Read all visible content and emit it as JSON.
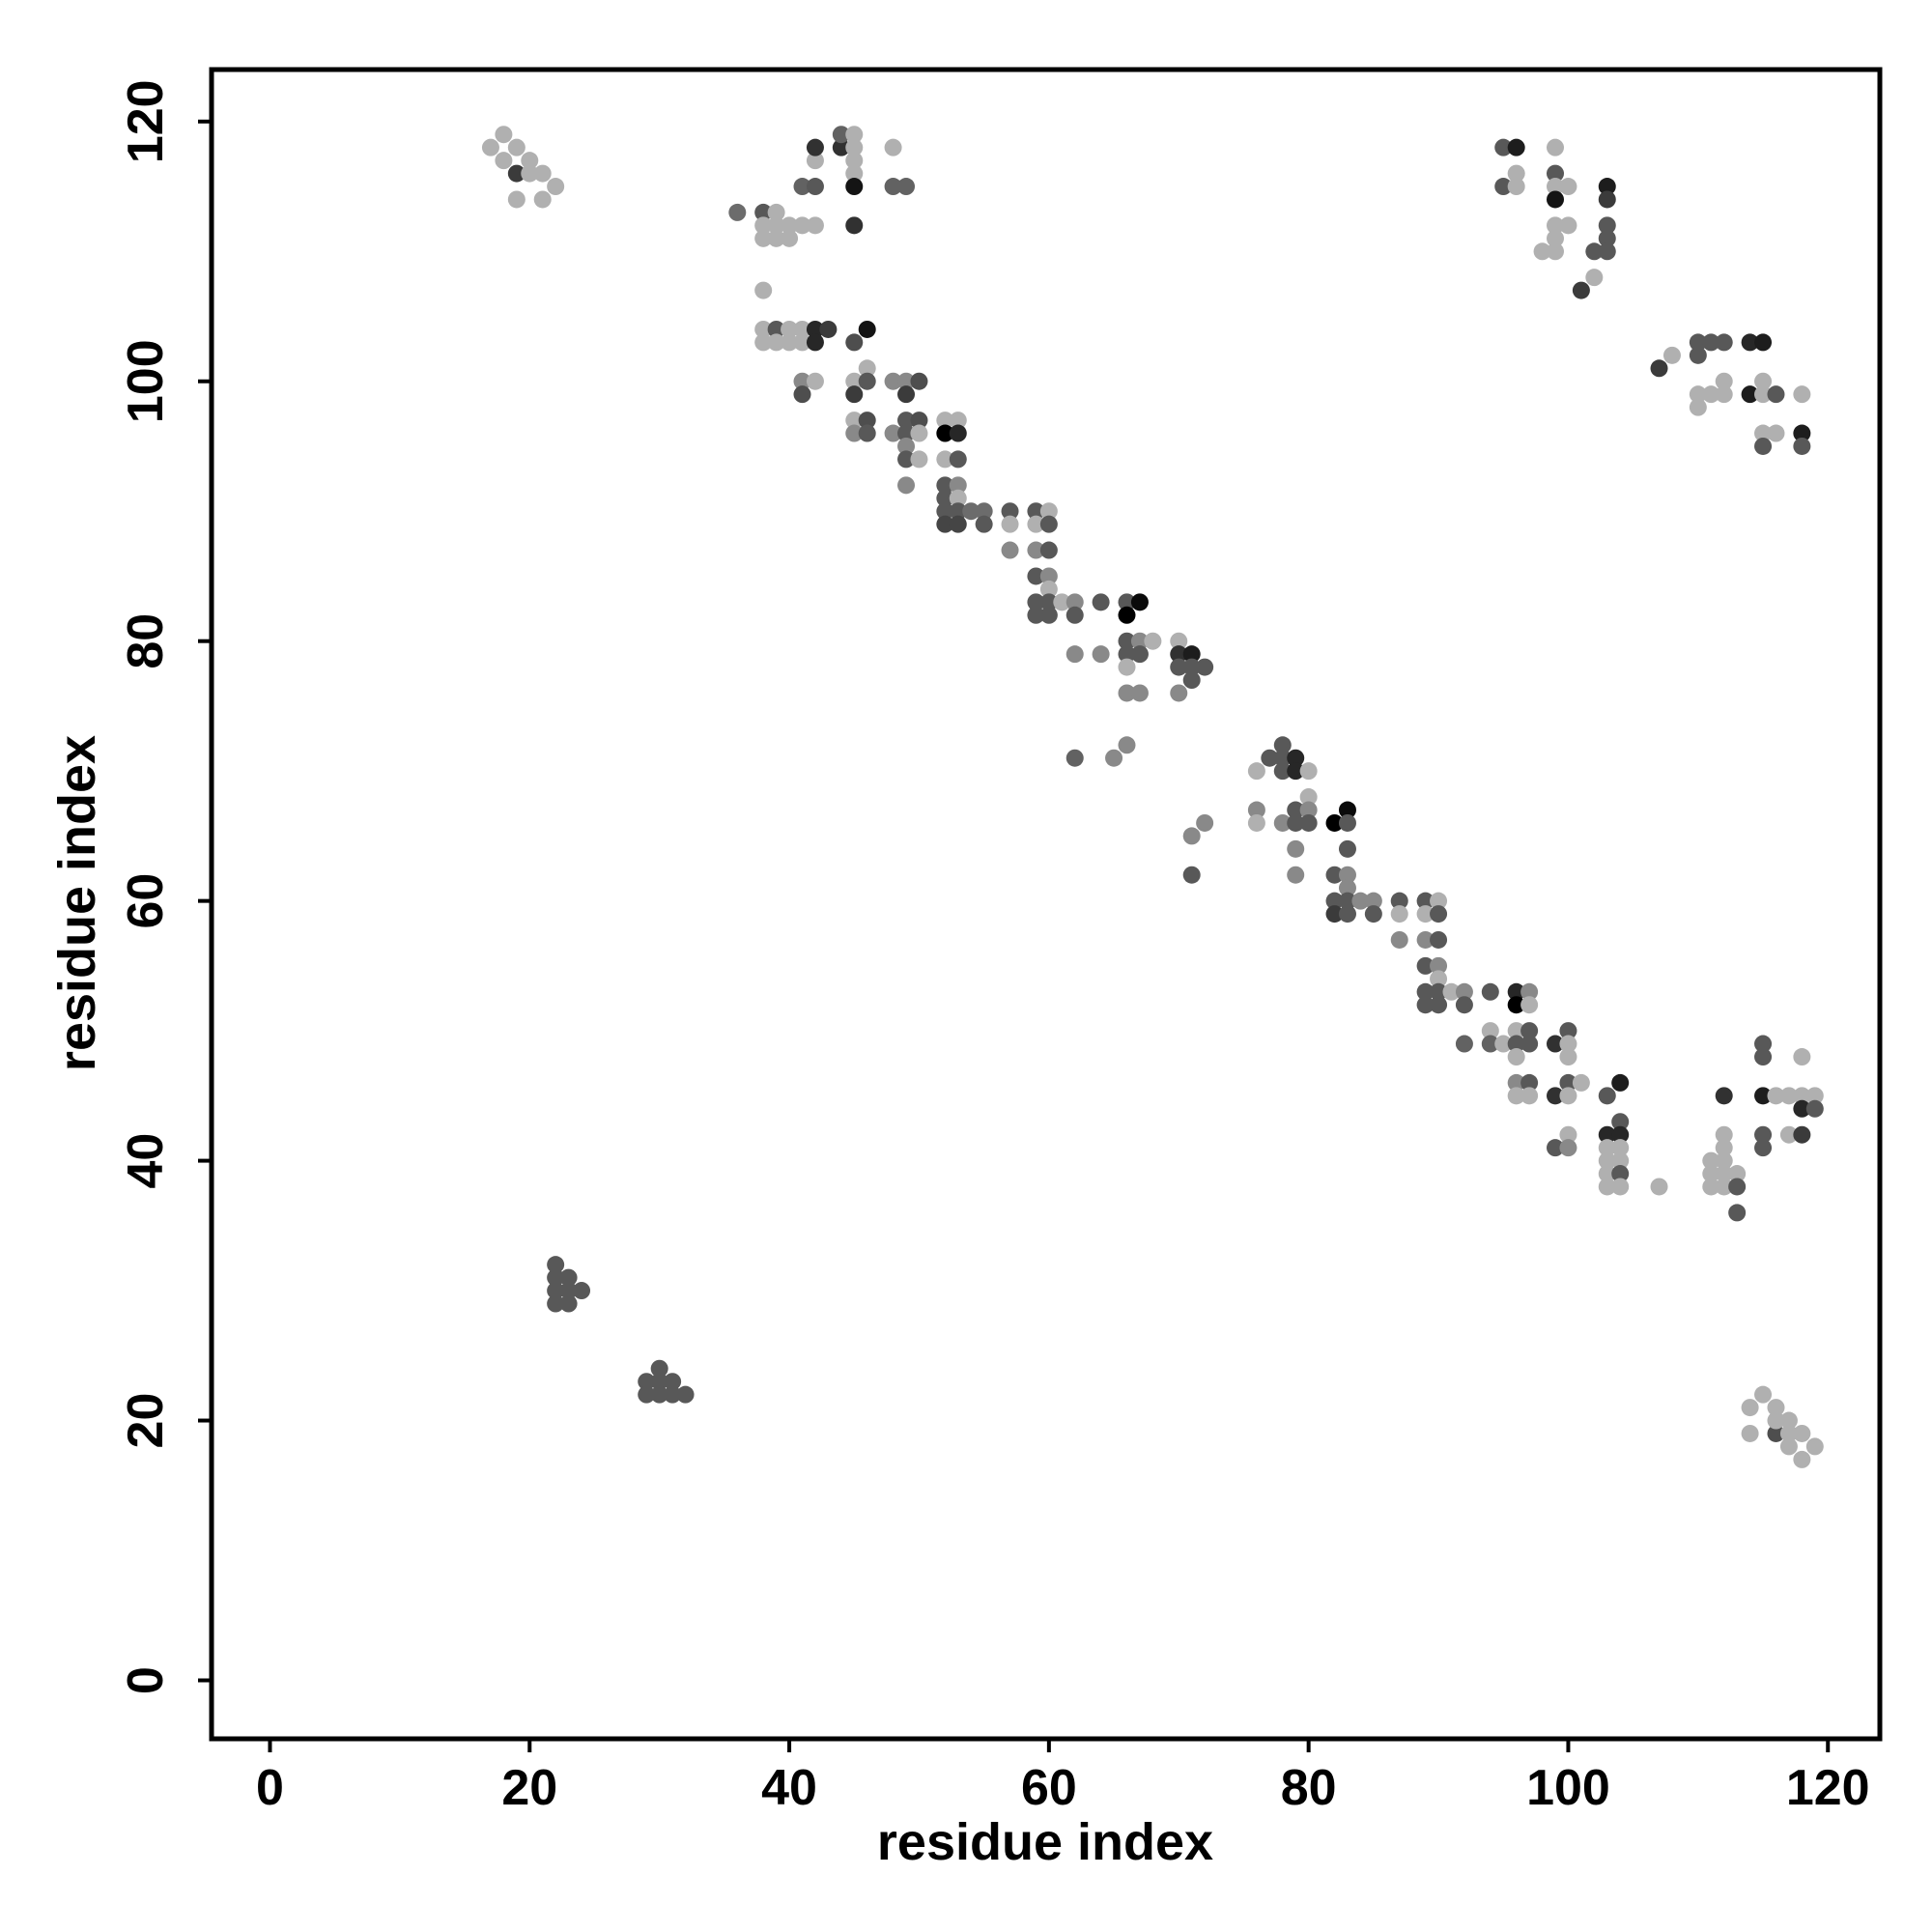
{
  "chart_data": {
    "type": "scatter",
    "title": "",
    "xlabel": "residue index",
    "ylabel": "residue index",
    "xlim": [
      -4.5,
      124
    ],
    "ylim": [
      -4.5,
      124
    ],
    "xticks": [
      0,
      20,
      40,
      60,
      80,
      100,
      120
    ],
    "yticks": [
      0,
      20,
      40,
      60,
      80,
      100,
      120
    ],
    "grid": false,
    "legend": "none",
    "point_color_scale": [
      "#c4c4c4",
      "#000000"
    ],
    "points": [
      [
        17,
        118,
        0.1
      ],
      [
        18,
        119,
        0.1
      ],
      [
        18,
        117,
        0.1
      ],
      [
        19,
        118,
        0.1
      ],
      [
        19,
        116,
        0.7
      ],
      [
        20,
        117,
        0.1
      ],
      [
        20,
        116,
        0.1
      ],
      [
        21,
        116,
        0.1
      ],
      [
        22,
        115,
        0.1
      ],
      [
        19,
        114,
        0.1
      ],
      [
        21,
        114,
        0.1
      ],
      [
        36,
        113,
        0.45
      ],
      [
        38,
        113,
        0.55
      ],
      [
        38,
        112,
        0.1
      ],
      [
        38,
        111,
        0.1
      ],
      [
        39,
        113,
        0.1
      ],
      [
        39,
        112,
        0.1
      ],
      [
        39,
        111,
        0.1
      ],
      [
        40,
        112,
        0.1
      ],
      [
        40,
        111,
        0.1
      ],
      [
        41,
        112,
        0.1
      ],
      [
        42,
        112,
        0.1
      ],
      [
        41,
        115,
        0.5
      ],
      [
        42,
        115,
        0.55
      ],
      [
        42,
        117,
        0.1
      ],
      [
        42,
        118,
        0.75
      ],
      [
        44,
        118,
        0.75
      ],
      [
        44,
        119,
        0.5
      ],
      [
        45,
        119,
        0.1
      ],
      [
        45,
        118,
        0.1
      ],
      [
        45,
        117,
        0.1
      ],
      [
        45,
        116,
        0.1
      ],
      [
        45,
        115,
        0.9
      ],
      [
        45,
        112,
        0.75
      ],
      [
        48,
        118,
        0.1
      ],
      [
        48,
        115,
        0.5
      ],
      [
        49,
        115,
        0.5
      ],
      [
        38,
        107,
        0.1
      ],
      [
        38,
        104,
        0.1
      ],
      [
        38,
        103,
        0.1
      ],
      [
        39,
        104,
        0.55
      ],
      [
        39,
        103,
        0.1
      ],
      [
        40,
        104,
        0.1
      ],
      [
        40,
        103,
        0.1
      ],
      [
        41,
        104,
        0.1
      ],
      [
        41,
        103,
        0.1
      ],
      [
        42,
        104,
        0.8
      ],
      [
        42,
        103,
        0.8
      ],
      [
        43,
        104,
        0.7
      ],
      [
        45,
        103,
        0.6
      ],
      [
        46,
        104,
        0.9
      ],
      [
        46,
        101,
        0.1
      ],
      [
        41,
        100,
        0.3
      ],
      [
        41,
        99,
        0.6
      ],
      [
        42,
        100,
        0.1
      ],
      [
        45,
        100,
        0.1
      ],
      [
        45,
        99,
        0.7
      ],
      [
        46,
        100,
        0.55
      ],
      [
        45,
        97,
        0.1
      ],
      [
        46,
        97,
        0.6
      ],
      [
        45,
        96,
        0.3
      ],
      [
        46,
        96,
        0.55
      ],
      [
        48,
        100,
        0.3
      ],
      [
        49,
        100,
        0.3
      ],
      [
        50,
        100,
        0.6
      ],
      [
        49,
        99,
        0.7
      ],
      [
        49,
        97,
        0.55
      ],
      [
        50,
        97,
        0.6
      ],
      [
        48,
        96,
        0.3
      ],
      [
        49,
        96,
        0.55
      ],
      [
        50,
        96,
        0.1
      ],
      [
        49,
        95,
        0.3
      ],
      [
        49,
        94,
        0.55
      ],
      [
        50,
        94,
        0.1
      ],
      [
        49,
        92,
        0.3
      ],
      [
        52,
        97,
        0.1
      ],
      [
        53,
        97,
        0.1
      ],
      [
        52,
        96,
        1.0
      ],
      [
        53,
        96,
        0.8
      ],
      [
        52,
        94,
        0.1
      ],
      [
        53,
        94,
        0.55
      ],
      [
        52,
        92,
        0.55
      ],
      [
        53,
        92,
        0.3
      ],
      [
        52,
        91,
        0.55
      ],
      [
        53,
        91,
        0.1
      ],
      [
        52,
        90,
        0.55
      ],
      [
        53,
        90,
        0.55
      ],
      [
        54,
        90,
        0.45
      ],
      [
        55,
        90,
        0.45
      ],
      [
        52,
        89,
        0.65
      ],
      [
        53,
        89,
        0.65
      ],
      [
        55,
        89,
        0.55
      ],
      [
        57,
        90,
        0.55
      ],
      [
        59,
        90,
        0.55
      ],
      [
        60,
        90,
        0.1
      ],
      [
        57,
        89,
        0.1
      ],
      [
        59,
        89,
        0.1
      ],
      [
        60,
        89,
        0.55
      ],
      [
        57,
        87,
        0.3
      ],
      [
        59,
        87,
        0.3
      ],
      [
        60,
        87,
        0.55
      ],
      [
        59,
        85,
        0.55
      ],
      [
        60,
        85,
        0.3
      ],
      [
        60,
        84,
        0.1
      ],
      [
        59,
        83,
        0.55
      ],
      [
        60,
        83,
        0.55
      ],
      [
        61,
        83,
        0.1
      ],
      [
        62,
        83,
        0.3
      ],
      [
        59,
        82,
        0.55
      ],
      [
        60,
        82,
        0.55
      ],
      [
        62,
        82,
        0.55
      ],
      [
        64,
        83,
        0.55
      ],
      [
        66,
        83,
        0.55
      ],
      [
        67,
        83,
        0.95
      ],
      [
        66,
        82,
        1.0
      ],
      [
        66,
        80,
        0.55
      ],
      [
        66,
        79,
        0.55
      ],
      [
        67,
        80,
        0.3
      ],
      [
        67,
        79,
        0.55
      ],
      [
        68,
        80,
        0.1
      ],
      [
        66,
        78,
        0.1
      ],
      [
        62,
        79,
        0.3
      ],
      [
        64,
        79,
        0.3
      ],
      [
        66,
        76,
        0.3
      ],
      [
        67,
        76,
        0.3
      ],
      [
        70,
        80,
        0.1
      ],
      [
        70,
        79,
        0.75
      ],
      [
        71,
        79,
        0.85
      ],
      [
        70,
        78,
        0.55
      ],
      [
        71,
        78,
        0.55
      ],
      [
        72,
        78,
        0.55
      ],
      [
        71,
        77,
        0.55
      ],
      [
        70,
        76,
        0.3
      ],
      [
        62,
        71,
        0.5
      ],
      [
        65,
        71,
        0.3
      ],
      [
        66,
        72,
        0.3
      ],
      [
        71,
        65,
        0.3
      ],
      [
        72,
        66,
        0.3
      ],
      [
        71,
        62,
        0.55
      ],
      [
        76,
        70,
        0.1
      ],
      [
        77,
        71,
        0.55
      ],
      [
        78,
        72,
        0.55
      ],
      [
        78,
        71,
        0.55
      ],
      [
        78,
        70,
        0.55
      ],
      [
        79,
        71,
        0.8
      ],
      [
        79,
        70,
        0.8
      ],
      [
        80,
        70,
        0.1
      ],
      [
        76,
        67,
        0.3
      ],
      [
        76,
        66,
        0.1
      ],
      [
        78,
        66,
        0.3
      ],
      [
        79,
        67,
        0.55
      ],
      [
        79,
        66,
        0.55
      ],
      [
        80,
        68,
        0.1
      ],
      [
        80,
        67,
        0.3
      ],
      [
        80,
        66,
        0.55
      ],
      [
        79,
        64,
        0.3
      ],
      [
        79,
        62,
        0.3
      ],
      [
        82,
        66,
        1.0
      ],
      [
        83,
        67,
        0.95
      ],
      [
        83,
        66,
        0.55
      ],
      [
        83,
        64,
        0.55
      ],
      [
        82,
        62,
        0.55
      ],
      [
        83,
        62,
        0.3
      ],
      [
        83,
        61,
        0.3
      ],
      [
        82,
        60,
        0.55
      ],
      [
        83,
        60,
        0.55
      ],
      [
        84,
        60,
        0.3
      ],
      [
        85,
        60,
        0.3
      ],
      [
        82,
        59,
        0.7
      ],
      [
        83,
        59,
        0.55
      ],
      [
        85,
        59,
        0.55
      ],
      [
        87,
        60,
        0.55
      ],
      [
        89,
        60,
        0.55
      ],
      [
        90,
        60,
        0.1
      ],
      [
        87,
        59,
        0.1
      ],
      [
        89,
        59,
        0.1
      ],
      [
        90,
        59,
        0.55
      ],
      [
        87,
        57,
        0.3
      ],
      [
        89,
        57,
        0.3
      ],
      [
        90,
        57,
        0.55
      ],
      [
        89,
        55,
        0.55
      ],
      [
        90,
        55,
        0.3
      ],
      [
        90,
        54,
        0.1
      ],
      [
        89,
        53,
        0.55
      ],
      [
        90,
        53,
        0.55
      ],
      [
        91,
        53,
        0.1
      ],
      [
        92,
        53,
        0.3
      ],
      [
        89,
        52,
        0.55
      ],
      [
        90,
        52,
        0.55
      ],
      [
        92,
        52,
        0.55
      ],
      [
        94,
        53,
        0.55
      ],
      [
        96,
        53,
        0.8
      ],
      [
        97,
        53,
        0.3
      ],
      [
        96,
        52,
        1.0
      ],
      [
        97,
        52,
        0.1
      ],
      [
        96,
        50,
        0.1
      ],
      [
        97,
        50,
        0.55
      ],
      [
        94,
        50,
        0.1
      ],
      [
        92,
        49,
        0.5
      ],
      [
        94,
        49,
        0.5
      ],
      [
        95,
        49,
        0.1
      ],
      [
        96,
        49,
        0.55
      ],
      [
        97,
        49,
        0.55
      ],
      [
        96,
        48,
        0.1
      ],
      [
        99,
        49,
        0.75
      ],
      [
        100,
        50,
        0.55
      ],
      [
        100,
        49,
        0.1
      ],
      [
        100,
        48,
        0.1
      ],
      [
        96,
        46,
        0.3
      ],
      [
        97,
        46,
        0.55
      ],
      [
        100,
        46,
        0.55
      ],
      [
        101,
        46,
        0.1
      ],
      [
        96,
        45,
        0.1
      ],
      [
        97,
        45,
        0.1
      ],
      [
        99,
        45,
        0.75
      ],
      [
        100,
        45,
        0.1
      ],
      [
        99,
        41,
        0.55
      ],
      [
        100,
        42,
        0.1
      ],
      [
        100,
        41,
        0.3
      ],
      [
        103,
        45,
        0.55
      ],
      [
        104,
        46,
        0.85
      ],
      [
        104,
        43,
        0.55
      ],
      [
        103,
        42,
        0.8
      ],
      [
        104,
        42,
        0.8
      ],
      [
        103,
        41,
        0.1
      ],
      [
        104,
        41,
        0.1
      ],
      [
        103,
        40,
        0.1
      ],
      [
        104,
        40,
        0.1
      ],
      [
        103,
        39,
        0.1
      ],
      [
        104,
        39,
        0.55
      ],
      [
        103,
        38,
        0.1
      ],
      [
        104,
        38,
        0.1
      ],
      [
        107,
        38,
        0.1
      ],
      [
        111,
        40,
        0.1
      ],
      [
        111,
        39,
        0.1
      ],
      [
        111,
        38,
        0.1
      ],
      [
        112,
        42,
        0.1
      ],
      [
        112,
        41,
        0.1
      ],
      [
        112,
        40,
        0.1
      ],
      [
        112,
        39,
        0.1
      ],
      [
        112,
        38,
        0.1
      ],
      [
        113,
        39,
        0.1
      ],
      [
        113,
        38,
        0.55
      ],
      [
        113,
        36,
        0.55
      ],
      [
        112,
        45,
        0.75
      ],
      [
        115,
        49,
        0.55
      ],
      [
        115,
        48,
        0.55
      ],
      [
        115,
        45,
        0.85
      ],
      [
        116,
        45,
        0.1
      ],
      [
        117,
        45,
        0.1
      ],
      [
        118,
        45,
        0.1
      ],
      [
        118,
        48,
        0.1
      ],
      [
        119,
        45,
        0.1
      ],
      [
        118,
        44,
        0.8
      ],
      [
        119,
        44,
        0.55
      ],
      [
        115,
        42,
        0.55
      ],
      [
        117,
        42,
        0.1
      ],
      [
        118,
        42,
        0.7
      ],
      [
        115,
        41,
        0.55
      ],
      [
        95,
        118,
        0.55
      ],
      [
        96,
        118,
        0.85
      ],
      [
        95,
        115,
        0.55
      ],
      [
        96,
        116,
        0.1
      ],
      [
        96,
        115,
        0.1
      ],
      [
        99,
        118,
        0.1
      ],
      [
        99,
        116,
        0.55
      ],
      [
        99,
        115,
        0.1
      ],
      [
        100,
        115,
        0.1
      ],
      [
        99,
        114,
        0.9
      ],
      [
        103,
        115,
        0.85
      ],
      [
        103,
        114,
        0.7
      ],
      [
        99,
        112,
        0.1
      ],
      [
        100,
        112,
        0.1
      ],
      [
        103,
        112,
        0.55
      ],
      [
        99,
        111,
        0.1
      ],
      [
        103,
        111,
        0.55
      ],
      [
        98,
        110,
        0.1
      ],
      [
        99,
        110,
        0.1
      ],
      [
        102,
        110,
        0.55
      ],
      [
        103,
        110,
        0.55
      ],
      [
        102,
        108,
        0.1
      ],
      [
        101,
        107,
        0.7
      ],
      [
        107,
        101,
        0.7
      ],
      [
        108,
        102,
        0.1
      ],
      [
        110,
        103,
        0.55
      ],
      [
        111,
        103,
        0.55
      ],
      [
        112,
        103,
        0.55
      ],
      [
        110,
        102,
        0.55
      ],
      [
        114,
        103,
        0.8
      ],
      [
        115,
        103,
        0.85
      ],
      [
        110,
        99,
        0.1
      ],
      [
        111,
        99,
        0.1
      ],
      [
        112,
        100,
        0.1
      ],
      [
        112,
        99,
        0.1
      ],
      [
        110,
        98,
        0.1
      ],
      [
        114,
        99,
        0.85
      ],
      [
        115,
        100,
        0.1
      ],
      [
        115,
        99,
        0.1
      ],
      [
        116,
        99,
        0.55
      ],
      [
        118,
        99,
        0.1
      ],
      [
        115,
        96,
        0.1
      ],
      [
        116,
        96,
        0.1
      ],
      [
        118,
        96,
        0.85
      ],
      [
        115,
        95,
        0.55
      ],
      [
        118,
        95,
        0.55
      ],
      [
        22,
        32,
        0.55
      ],
      [
        22,
        31,
        0.55
      ],
      [
        23,
        31,
        0.55
      ],
      [
        22,
        30,
        0.55
      ],
      [
        23,
        30,
        0.55
      ],
      [
        24,
        30,
        0.55
      ],
      [
        22,
        29,
        0.55
      ],
      [
        23,
        29,
        0.55
      ],
      [
        29,
        23,
        0.55
      ],
      [
        30,
        24,
        0.55
      ],
      [
        30,
        23,
        0.55
      ],
      [
        31,
        23,
        0.55
      ],
      [
        29,
        22,
        0.55
      ],
      [
        30,
        22,
        0.55
      ],
      [
        31,
        22,
        0.55
      ],
      [
        32,
        22,
        0.55
      ],
      [
        114,
        21,
        0.1
      ],
      [
        115,
        22,
        0.1
      ],
      [
        116,
        21,
        0.1
      ],
      [
        114,
        19,
        0.1
      ],
      [
        116,
        19,
        0.6
      ],
      [
        116,
        20,
        0.1
      ],
      [
        117,
        20,
        0.1
      ],
      [
        117,
        19,
        0.1
      ],
      [
        118,
        19,
        0.1
      ],
      [
        117,
        18,
        0.1
      ],
      [
        119,
        18,
        0.1
      ],
      [
        118,
        17,
        0.1
      ]
    ]
  }
}
